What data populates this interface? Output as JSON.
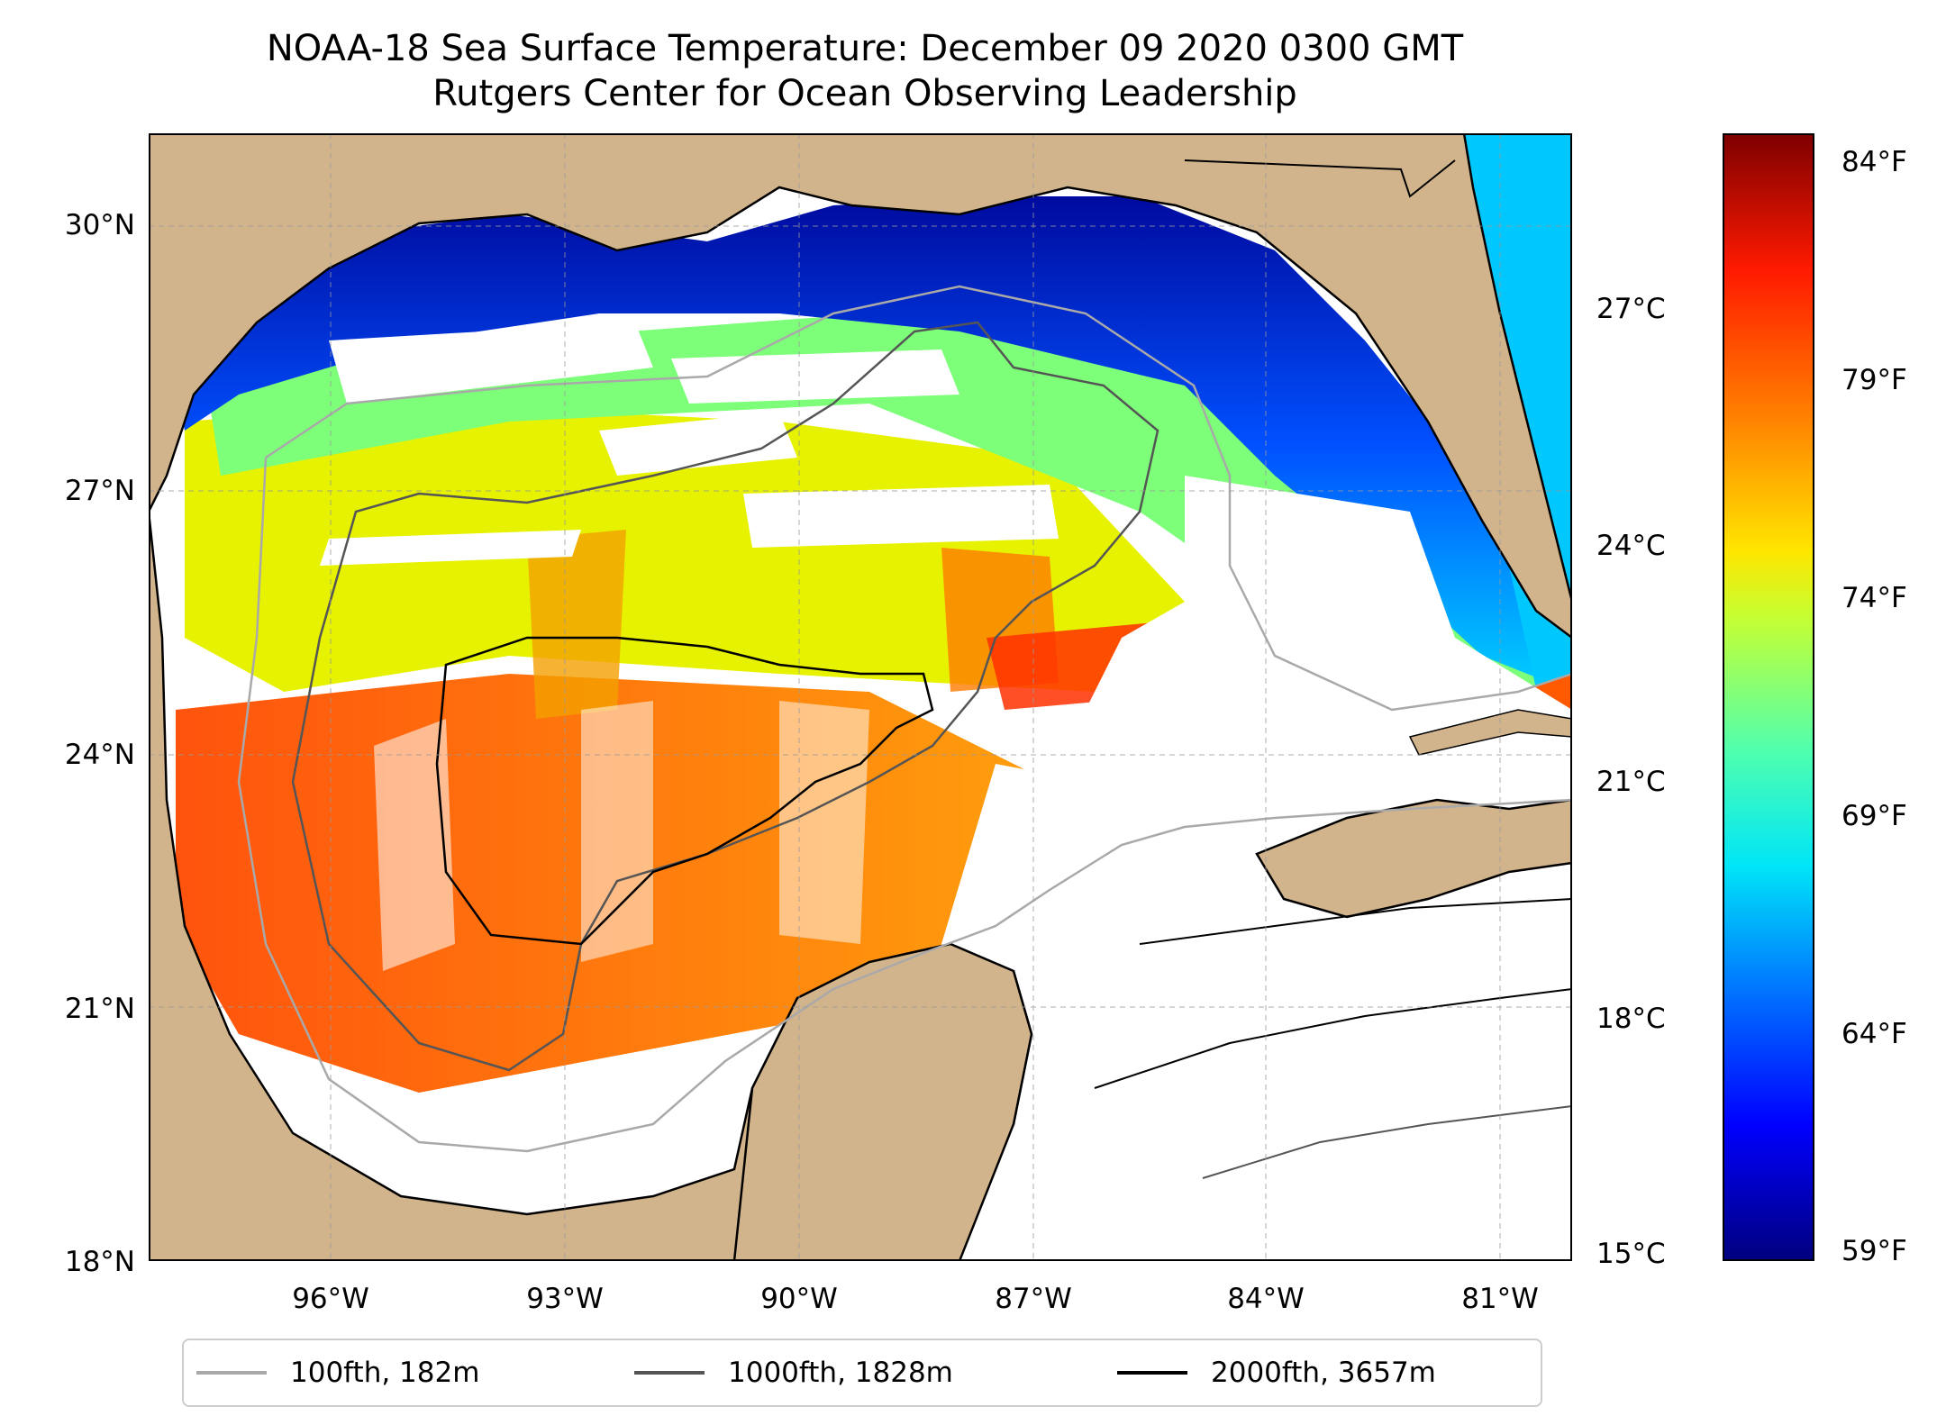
{
  "title": {
    "line1": "NOAA-18 Sea Surface Temperature: December 09 2020 0300 GMT",
    "line2": "Rutgers Center for Ocean Observing Leadership"
  },
  "map": {
    "lat_labels": [
      "30°N",
      "27°N",
      "24°N",
      "21°N",
      "18°N"
    ],
    "lon_labels": [
      "96°W",
      "93°W",
      "90°W",
      "87°W",
      "84°W",
      "81°W"
    ],
    "land_color": "#d2b48c"
  },
  "colorbar": {
    "celsius_labels": [
      "27°C",
      "24°C",
      "21°C",
      "18°C",
      "15°C"
    ],
    "fahrenheit_labels": [
      "84°F",
      "79°F",
      "74°F",
      "69°F",
      "64°F",
      "59°F"
    ]
  },
  "legend": {
    "items": [
      {
        "label": "100fth, 182m",
        "color": "#a9a9a9"
      },
      {
        "label": "1000fth, 1828m",
        "color": "#555555"
      },
      {
        "label": "2000fth, 3657m",
        "color": "#000000"
      }
    ]
  }
}
